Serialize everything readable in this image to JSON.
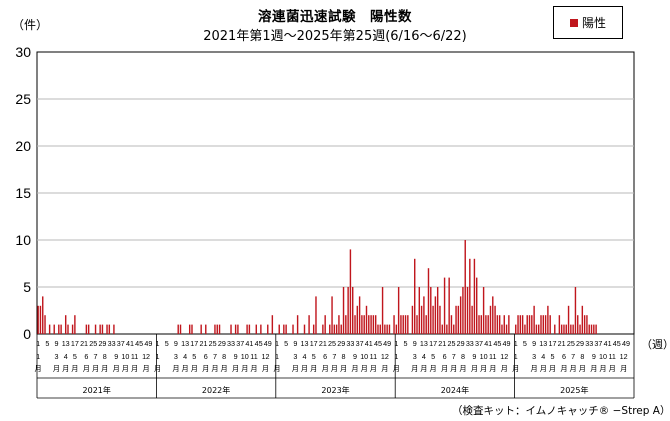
{
  "chart_data": {
    "type": "bar",
    "title": "溶連菌迅速試験　陽性数",
    "subtitle": "2021年第1週～2025年第25週(6/16～6/22)",
    "ylabel": "（件）",
    "xlabel": "（週）",
    "legend": {
      "label": "陽性",
      "placement": "top-right",
      "color": "#c0161d"
    },
    "footnote": "（検査キット：イムノキャッチ® −Strep A）",
    "ylim": [
      0,
      30
    ],
    "yticks": [
      "0",
      "5",
      "10",
      "15",
      "20",
      "25",
      "30"
    ],
    "grid": true,
    "weeks_per_year": 52,
    "week_ticks": [
      "1",
      "5",
      "9",
      "13",
      "17",
      "21",
      "25",
      "29",
      "33",
      "37",
      "41",
      "45",
      "49"
    ],
    "month_labels": [
      "1",
      "3",
      "4",
      "5",
      "6",
      "7",
      "8",
      "9",
      "10",
      "11",
      "12"
    ],
    "month_label_weeks": [
      1,
      9,
      13,
      17,
      22,
      26,
      30,
      35,
      39,
      43,
      48
    ],
    "month_suffix": "月",
    "years": [
      "2021年",
      "2022年",
      "2023年",
      "2024年",
      "2025年"
    ],
    "series": [
      {
        "name": "陽性",
        "color": "#c0161d",
        "values": [
          3,
          3,
          4,
          2,
          0,
          1,
          0,
          1,
          0,
          1,
          1,
          0,
          2,
          1,
          0,
          1,
          2,
          0,
          0,
          0,
          0,
          1,
          1,
          0,
          0,
          1,
          0,
          1,
          1,
          0,
          1,
          1,
          0,
          1,
          0,
          0,
          0,
          0,
          0,
          0,
          0,
          0,
          0,
          0,
          0,
          0,
          0,
          0,
          0,
          0,
          0,
          0,
          0,
          0,
          0,
          0,
          0,
          0,
          0,
          0,
          0,
          1,
          1,
          0,
          0,
          0,
          1,
          1,
          0,
          0,
          0,
          1,
          0,
          1,
          0,
          0,
          0,
          1,
          1,
          1,
          0,
          0,
          0,
          0,
          1,
          0,
          1,
          1,
          0,
          0,
          0,
          1,
          1,
          0,
          0,
          1,
          0,
          1,
          0,
          0,
          1,
          0,
          2,
          0,
          0,
          1,
          0,
          1,
          1,
          0,
          0,
          1,
          0,
          2,
          0,
          0,
          1,
          0,
          2,
          0,
          1,
          4,
          0,
          0,
          1,
          2,
          0,
          1,
          4,
          1,
          1,
          2,
          1,
          5,
          2,
          5,
          9,
          5,
          2,
          3,
          4,
          2,
          2,
          3,
          2,
          2,
          2,
          2,
          1,
          1,
          5,
          1,
          1,
          1,
          0,
          2,
          1,
          5,
          2,
          2,
          2,
          2,
          0,
          3,
          8,
          2,
          5,
          3,
          4,
          2,
          7,
          5,
          3,
          4,
          5,
          3,
          1,
          6,
          1,
          6,
          2,
          1,
          3,
          3,
          4,
          5,
          10,
          5,
          8,
          3,
          8,
          6,
          2,
          2,
          5,
          2,
          2,
          3,
          4,
          3,
          2,
          2,
          1,
          2,
          1,
          2,
          0,
          0,
          1,
          2,
          2,
          2,
          1,
          2,
          2,
          2,
          3,
          1,
          1,
          2,
          2,
          2,
          3,
          2,
          0,
          1,
          0,
          2,
          1,
          1,
          1,
          3,
          1,
          1,
          5,
          2,
          1,
          3,
          2,
          2,
          1,
          1,
          1,
          1
        ]
      }
    ]
  }
}
